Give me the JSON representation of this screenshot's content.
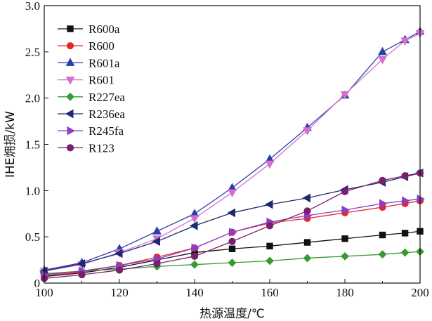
{
  "chart_data": {
    "type": "line",
    "xlabel": "热源温度/℃",
    "ylabel": "IHE㶲损/kW",
    "xlim": [
      100,
      200
    ],
    "ylim": [
      0,
      3.0
    ],
    "x_ticks": [
      "100",
      "120",
      "140",
      "160",
      "180",
      "200"
    ],
    "y_ticks": [
      "0",
      "0.5",
      "1.0",
      "1.5",
      "2.0",
      "2.5",
      "3.0"
    ],
    "grid": false,
    "legend_position": "top-left",
    "series": [
      {
        "name": "R600a",
        "color": "#111111",
        "marker": "square",
        "x": [
          100,
          110,
          120,
          130,
          140,
          150,
          160,
          170,
          180,
          190,
          196,
          200
        ],
        "y": [
          0.07,
          0.11,
          0.17,
          0.25,
          0.33,
          0.37,
          0.4,
          0.44,
          0.48,
          0.52,
          0.54,
          0.56
        ]
      },
      {
        "name": "R600",
        "color": "#e8262a",
        "marker": "circle",
        "x": [
          100,
          110,
          120,
          130,
          140,
          150,
          160,
          170,
          180,
          190,
          196,
          200
        ],
        "y": [
          0.08,
          0.12,
          0.19,
          0.28,
          0.38,
          0.55,
          0.65,
          0.7,
          0.76,
          0.82,
          0.86,
          0.89
        ]
      },
      {
        "name": "R601a",
        "color": "#2b3ea6",
        "marker": "triangle-up",
        "x": [
          100,
          110,
          120,
          130,
          140,
          150,
          160,
          170,
          180,
          190,
          196,
          200
        ],
        "y": [
          0.14,
          0.22,
          0.37,
          0.56,
          0.75,
          1.03,
          1.34,
          1.68,
          2.03,
          2.5,
          2.63,
          2.72
        ]
      },
      {
        "name": "R601",
        "color": "#d46fd0",
        "marker": "triangle-down",
        "x": [
          100,
          110,
          120,
          130,
          140,
          150,
          160,
          170,
          180,
          190,
          196,
          200
        ],
        "y": [
          0.13,
          0.2,
          0.33,
          0.48,
          0.7,
          0.98,
          1.29,
          1.65,
          2.04,
          2.42,
          2.62,
          2.7
        ]
      },
      {
        "name": "R227ea",
        "color": "#3a9a32",
        "marker": "diamond",
        "x": [
          100,
          110,
          120,
          130,
          140,
          150,
          160,
          170,
          180,
          190,
          196,
          200
        ],
        "y": [
          0.1,
          0.13,
          0.15,
          0.18,
          0.2,
          0.22,
          0.24,
          0.27,
          0.29,
          0.31,
          0.33,
          0.34
        ]
      },
      {
        "name": "R236ea",
        "color": "#1f2a6e",
        "marker": "triangle-left",
        "x": [
          100,
          110,
          120,
          130,
          140,
          150,
          160,
          170,
          180,
          190,
          196,
          200
        ],
        "y": [
          0.13,
          0.21,
          0.32,
          0.45,
          0.62,
          0.76,
          0.85,
          0.92,
          1.01,
          1.09,
          1.15,
          1.19
        ]
      },
      {
        "name": "R245fa",
        "color": "#8a3fc4",
        "marker": "triangle-right",
        "x": [
          100,
          110,
          120,
          130,
          140,
          150,
          160,
          170,
          180,
          190,
          196,
          200
        ],
        "y": [
          0.09,
          0.13,
          0.19,
          0.26,
          0.38,
          0.55,
          0.66,
          0.73,
          0.79,
          0.86,
          0.89,
          0.91
        ]
      },
      {
        "name": "R123",
        "color": "#7a1f6e",
        "marker": "circle",
        "x": [
          100,
          110,
          120,
          130,
          140,
          150,
          160,
          170,
          180,
          190,
          196,
          200
        ],
        "y": [
          0.05,
          0.09,
          0.14,
          0.21,
          0.29,
          0.45,
          0.62,
          0.78,
          0.99,
          1.11,
          1.16,
          1.19
        ]
      }
    ]
  }
}
